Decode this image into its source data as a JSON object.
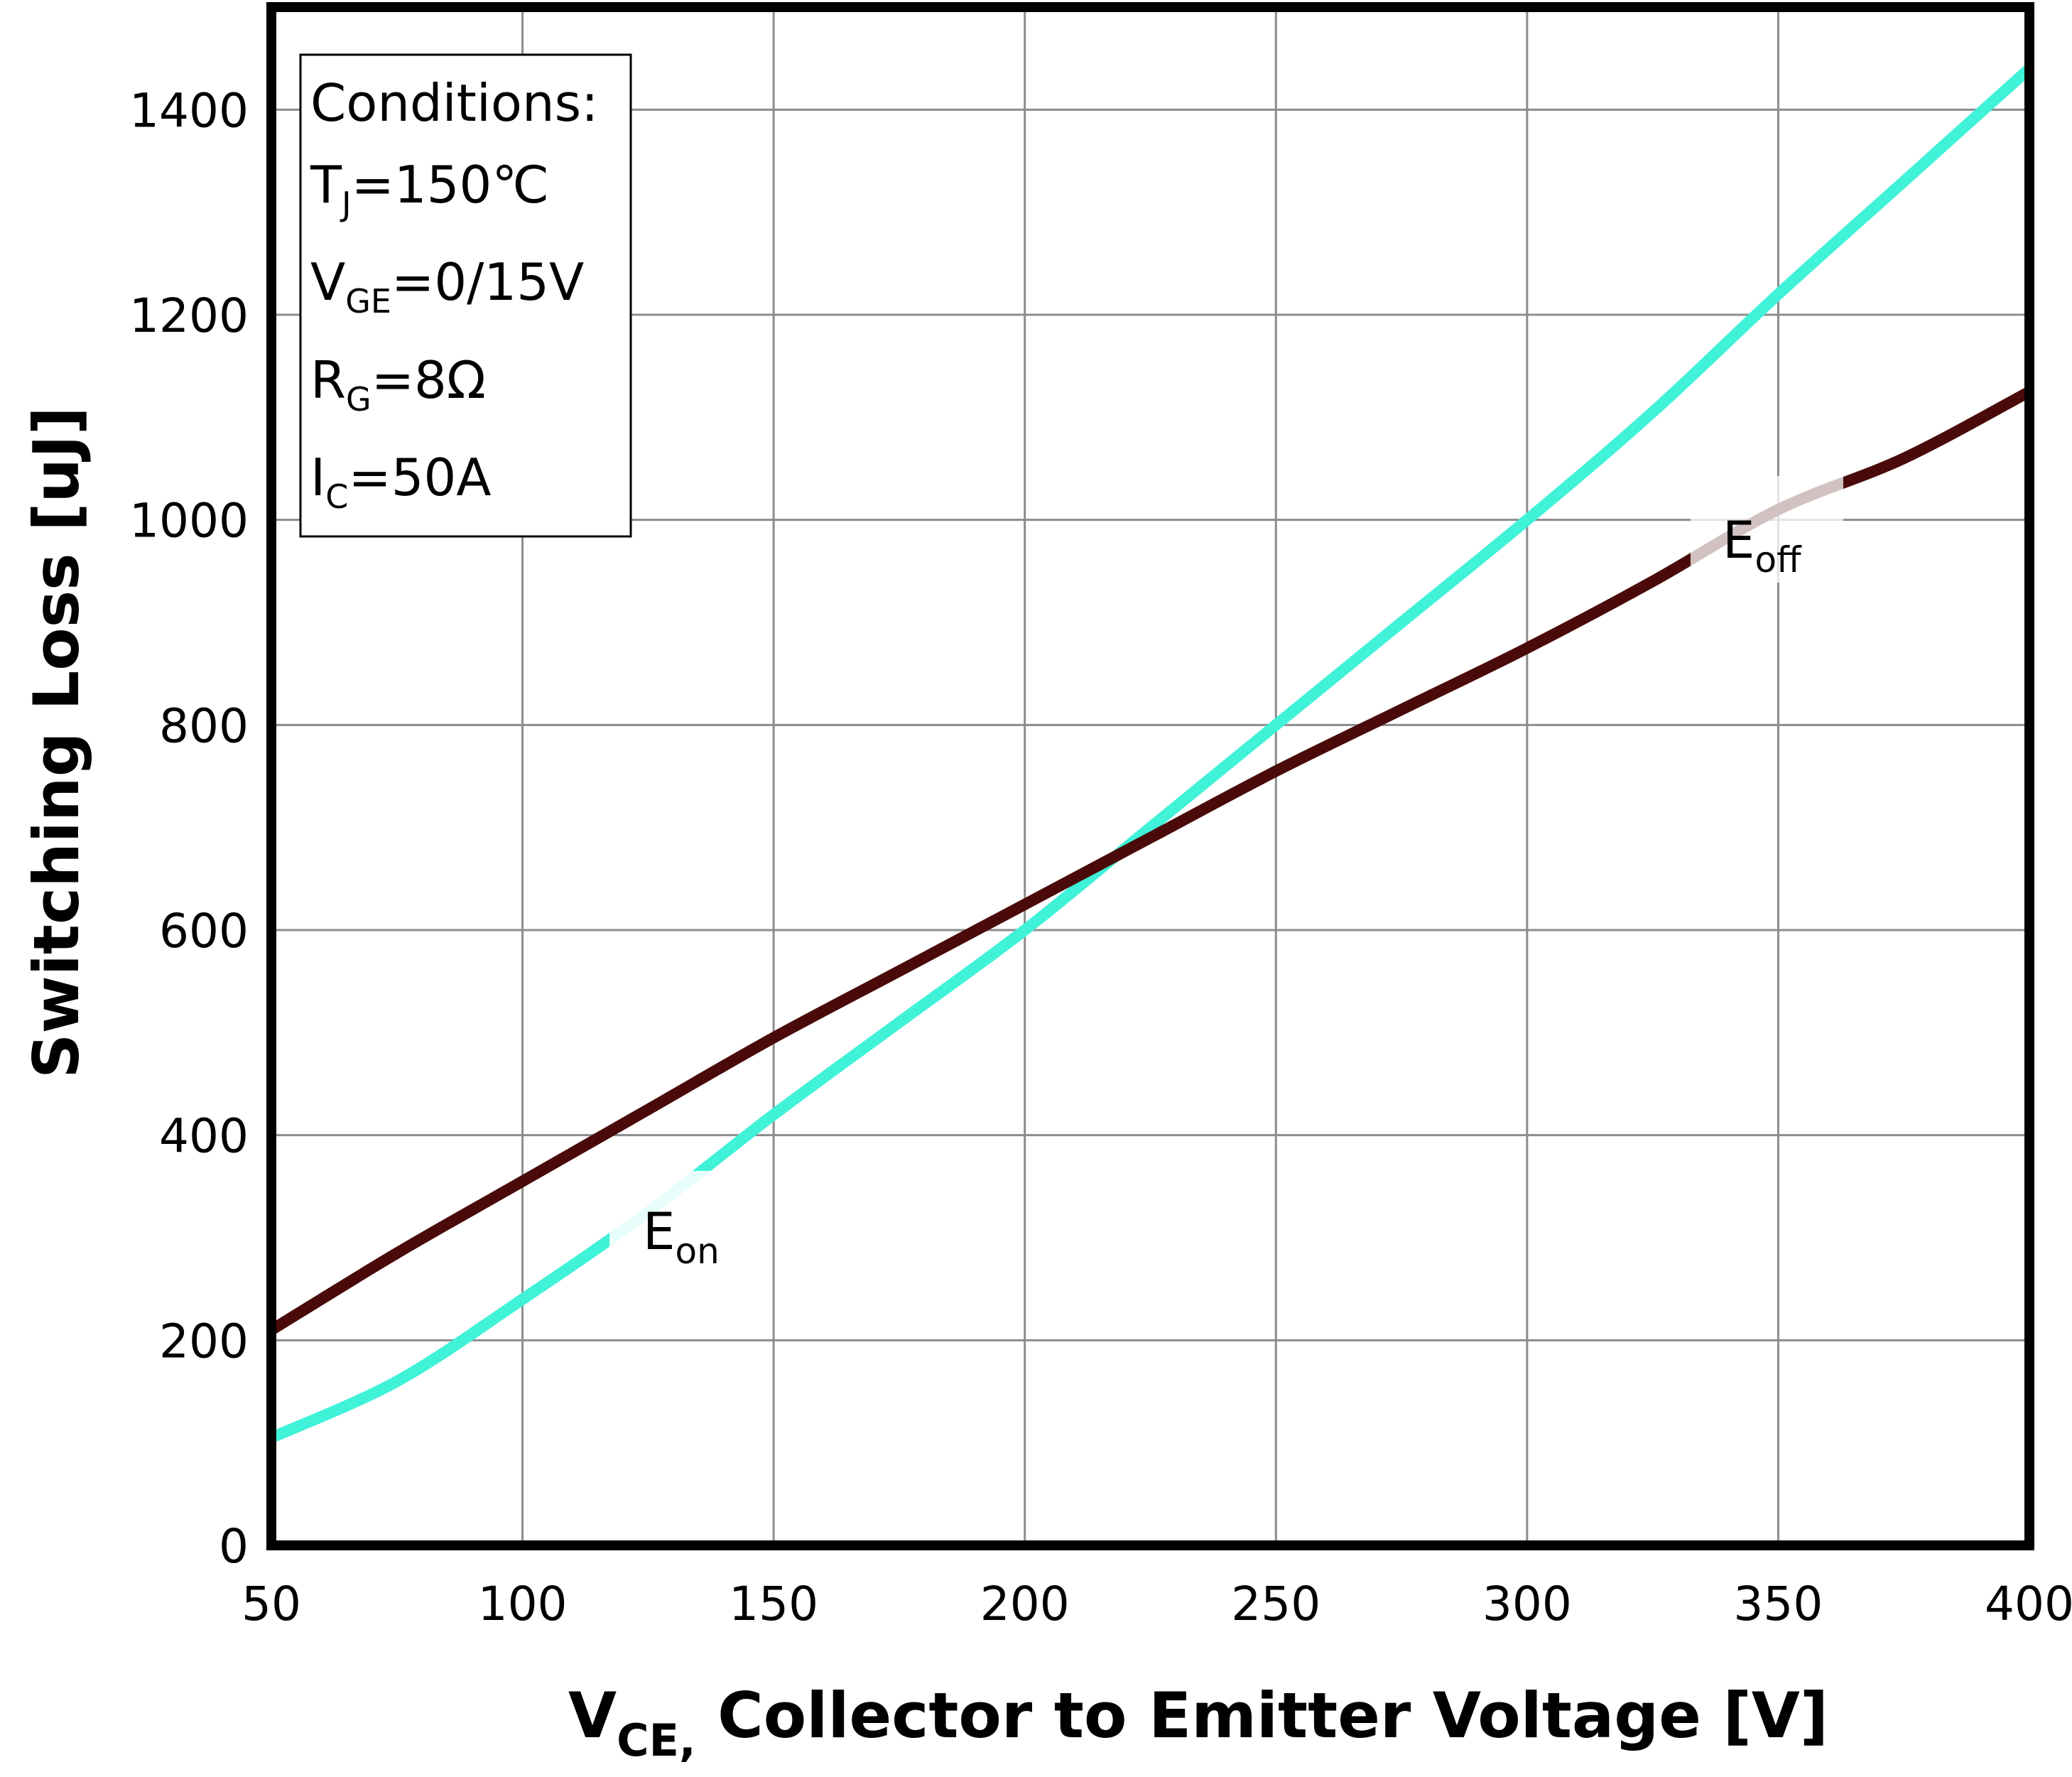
{
  "chart_data": {
    "type": "line",
    "xlabel": {
      "main": "V",
      "sub": "CE,",
      "rest": " Collector to Emitter Voltage [V]"
    },
    "ylabel": "Switching Loss [uJ]",
    "xlim": [
      50,
      400
    ],
    "ylim": [
      0,
      1500
    ],
    "xticks": [
      "50",
      "100",
      "150",
      "200",
      "250",
      "300",
      "350",
      "400"
    ],
    "yticks": [
      "0",
      "200",
      "400",
      "600",
      "800",
      "1000",
      "1200",
      "1400"
    ],
    "grid": true,
    "series": [
      {
        "name": "Eon",
        "label": {
          "main": "E",
          "sub": "on"
        },
        "color": "#3ff2d8",
        "x": [
          50,
          75,
          100,
          125,
          150,
          175,
          200,
          225,
          250,
          275,
          300,
          325,
          350,
          375,
          400
        ],
        "y": [
          105,
          160,
          240,
          325,
          420,
          510,
          600,
          700,
          800,
          900,
          1000,
          1105,
          1220,
          1330,
          1440
        ]
      },
      {
        "name": "Eoff",
        "label": {
          "main": "E",
          "sub": "off"
        },
        "color": "#4a0a0a",
        "x": [
          50,
          75,
          100,
          125,
          150,
          175,
          200,
          225,
          250,
          275,
          300,
          325,
          350,
          375,
          400
        ],
        "y": [
          210,
          285,
          355,
          425,
          495,
          560,
          625,
          690,
          755,
          815,
          875,
          940,
          1010,
          1060,
          1125
        ]
      }
    ],
    "annotation": {
      "title": "Conditions:",
      "lines": [
        {
          "main": "T",
          "sub": "J",
          "rest": "=150℃"
        },
        {
          "main": "V",
          "sub": "GE",
          "rest": "=0/15V"
        },
        {
          "main": "R",
          "sub": "G",
          "rest": "=8Ω"
        },
        {
          "main": "I",
          "sub": "C",
          "rest": "=50A"
        }
      ]
    }
  }
}
